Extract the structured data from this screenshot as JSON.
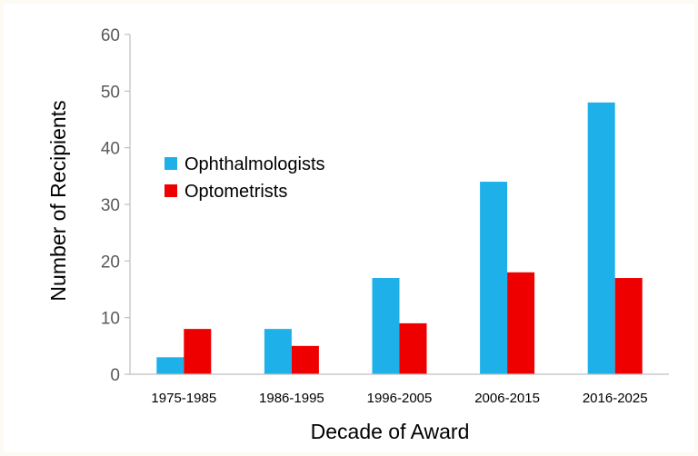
{
  "chart_data": {
    "type": "bar",
    "title": "",
    "xlabel": "Decade of Award",
    "ylabel": "Number of Recipients",
    "ylim": [
      0,
      60
    ],
    "yticks": [
      0,
      10,
      20,
      30,
      40,
      50,
      60
    ],
    "grid": false,
    "legend_position": "upper-left",
    "categories": [
      "1975-1985",
      "1986-1995",
      "1996-2005",
      "2006-2015",
      "2016-2025"
    ],
    "series": [
      {
        "name": "Ophthalmologists",
        "color": "#1eb0e8",
        "values": [
          3,
          8,
          17,
          34,
          48
        ]
      },
      {
        "name": "Optometrists",
        "color": "#ee0000",
        "values": [
          8,
          5,
          9,
          18,
          17
        ]
      }
    ]
  }
}
